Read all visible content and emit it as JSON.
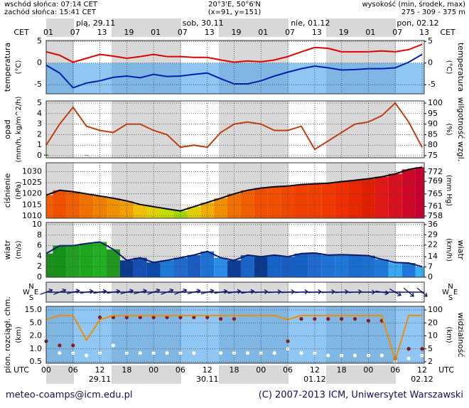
{
  "header": {
    "sunrise": "wschód słońca: 07:14 CET",
    "sunset": "zachód słońca: 15:41 CET",
    "coords": "20°3'E, 50°6'N",
    "grid": "(x=91, y=151)",
    "height_title": "wysokość (min, środek, max)",
    "height": "275 - 309 - 375 m"
  },
  "time_axis": {
    "cet_label": "CET",
    "utc_label": "UTC",
    "cet_hours": [
      "01",
      "07",
      "13",
      "19",
      "01",
      "07",
      "13",
      "19",
      "01",
      "07",
      "13",
      "19",
      "01",
      "07",
      "13"
    ],
    "utc_hours": [
      "00",
      "06",
      "12",
      "18",
      "00",
      "06",
      "12",
      "18",
      "00",
      "06",
      "12",
      "18",
      "00",
      "06",
      "12"
    ],
    "days": [
      "pią, 29.11",
      "sob, 30.11",
      "nie, 01.12",
      "pon, 02.12"
    ],
    "dates": [
      "29.11",
      "30.11",
      "01.12",
      "02.12"
    ]
  },
  "footer": {
    "left": "meteo-coamps@icm.edu.pl",
    "right": "(C) 2007-2013 ICM, Uniwersytet Warszawski"
  },
  "chart_data": [
    {
      "type": "line",
      "ylabel": "temperatura",
      "yunit": "(°C)",
      "y2label": "temperatura",
      "y2unit": "(°C)",
      "ylim": [
        -7.1,
        5.2
      ],
      "yticks": [
        -5,
        0,
        5
      ],
      "y2lim": [
        -7.1,
        5.2
      ],
      "y2ticks": [
        -5,
        0,
        5
      ],
      "grid": true,
      "x": [
        "29.11 00",
        "29.11 03",
        "29.11 06",
        "29.11 09",
        "29.11 12",
        "29.11 15",
        "29.11 18",
        "29.11 21",
        "30.11 00",
        "30.11 03",
        "30.11 06",
        "30.11 09",
        "30.11 12",
        "30.11 15",
        "30.11 18",
        "30.11 21",
        "01.12 00",
        "01.12 03",
        "01.12 06",
        "01.12 09",
        "01.12 12",
        "01.12 15",
        "01.12 18",
        "01.12 21",
        "02.12 00",
        "02.12 03",
        "02.12 06",
        "02.12 09",
        "02.12 12"
      ],
      "series": [
        {
          "type": "line",
          "color": "#e00000",
          "values": [
            2.6,
            1.8,
            0.2,
            1.1,
            2.0,
            1.6,
            1.1,
            1.5,
            2.0,
            1.5,
            1.5,
            1.3,
            1.3,
            0.7,
            0.2,
            0.5,
            0.3,
            0.7,
            1.5,
            2.6,
            3.6,
            3.4,
            2.6,
            2.6,
            2.6,
            2.8,
            2.6,
            3.1,
            4.3
          ]
        },
        {
          "type": "line",
          "color": "#0020b0",
          "values": [
            -0.5,
            -2.3,
            -5.7,
            -4.6,
            -4.1,
            -3.3,
            -3.0,
            -3.4,
            -2.6,
            -3.1,
            -3.0,
            -2.6,
            -2.3,
            -3.6,
            -4.8,
            -4.8,
            -4.1,
            -3.0,
            -2.1,
            -1.3,
            -0.7,
            -1.1,
            -1.6,
            -1.5,
            -1.3,
            -1.3,
            -1.1,
            0.2,
            2.0
          ]
        }
      ]
    },
    {
      "type": "combo",
      "ylabel": "opad",
      "yunit": "(mm/h, kg/m^2/h)",
      "y2label": "wilgotność wzgl.",
      "y2unit": "(%)",
      "ylim": [
        -0.2,
        5.2
      ],
      "yticks": [
        0,
        1,
        2,
        3,
        4,
        5
      ],
      "y2lim": [
        74,
        101
      ],
      "y2ticks": [
        75,
        80,
        85,
        90,
        95,
        100
      ],
      "grid": true,
      "x": [
        "29.11 00",
        "29.11 03",
        "29.11 06",
        "29.11 09",
        "29.11 12",
        "29.11 15",
        "29.11 18",
        "29.11 21",
        "30.11 00",
        "30.11 03",
        "30.11 06",
        "30.11 09",
        "30.11 12",
        "30.11 15",
        "30.11 18",
        "30.11 21",
        "01.12 00",
        "01.12 03",
        "01.12 06",
        "01.12 09",
        "01.12 12",
        "01.12 15",
        "01.12 18",
        "01.12 21",
        "02.12 00",
        "02.12 03",
        "02.12 06",
        "02.12 09",
        "02.12 12"
      ],
      "series": [
        {
          "type": "bar",
          "color": "#10a010",
          "values": [
            0.1,
            0,
            0,
            0.05,
            0,
            0,
            0,
            0,
            0,
            0,
            0,
            0,
            0,
            0,
            0,
            0,
            0,
            0,
            0,
            0,
            0,
            0,
            0,
            0,
            0,
            0,
            0,
            0,
            0
          ]
        },
        {
          "type": "line",
          "axis": "y2",
          "color": "#c04010",
          "values": [
            80,
            90,
            98,
            89,
            87,
            86,
            90,
            90,
            87,
            85,
            79,
            80,
            79,
            86,
            90,
            91,
            90,
            87,
            87,
            89,
            78,
            82,
            86,
            90,
            91,
            94,
            100,
            91,
            79
          ]
        }
      ]
    },
    {
      "type": "area",
      "ylabel": "ciśnienie",
      "yunit": "(hPa)",
      "y2unit": "(mm Hg)",
      "ylim": [
        1009,
        1034
      ],
      "yticks": [
        1010,
        1015,
        1020,
        1025,
        1030
      ],
      "y2lim": [
        757.3,
        774.9
      ],
      "y2ticks": [
        758,
        761,
        765,
        769,
        772
      ],
      "grid": true,
      "x": [
        "29.11 00",
        "29.11 03",
        "29.11 06",
        "29.11 09",
        "29.11 12",
        "29.11 15",
        "29.11 18",
        "29.11 21",
        "30.11 00",
        "30.11 03",
        "30.11 06",
        "30.11 09",
        "30.11 12",
        "30.11 15",
        "30.11 18",
        "30.11 21",
        "01.12 00",
        "01.12 03",
        "01.12 06",
        "01.12 09",
        "01.12 12",
        "01.12 15",
        "01.12 18",
        "01.12 21",
        "02.12 00",
        "02.12 03",
        "02.12 06",
        "02.12 09",
        "02.12 12"
      ],
      "series": [
        {
          "type": "area",
          "color": "#000000",
          "values": [
            1019.4,
            1021.6,
            1021,
            1020,
            1019,
            1018,
            1016.8,
            1015.2,
            1014.2,
            1013.2,
            1012.3,
            1014.2,
            1016.1,
            1018,
            1020,
            1021.6,
            1022.6,
            1023.2,
            1023.5,
            1024.2,
            1024.5,
            1024.8,
            1025.5,
            1026.1,
            1026.8,
            1027.7,
            1029,
            1031,
            1032
          ],
          "point_colors": [
            "#f06000",
            "#f05000",
            "#f06000",
            "#f07000",
            "#f08000",
            "#f09000",
            "#f0a000",
            "#f0c000",
            "#e0d000",
            "#c0e000",
            "#a0d800",
            "#e0d000",
            "#f0b000",
            "#f09000",
            "#f07000",
            "#f06000",
            "#f05000",
            "#f05000",
            "#f04800",
            "#f04000",
            "#f04000",
            "#f03800",
            "#f03000",
            "#e82800",
            "#e02000",
            "#e01818",
            "#d81020",
            "#d00828",
            "#c80030"
          ]
        }
      ]
    },
    {
      "type": "area",
      "ylabel": "wiatr",
      "yunit": "(m/s)",
      "y2label": "wiatr",
      "y2unit": "(km/h)",
      "ylim": [
        0,
        10.4
      ],
      "yticks": [
        0,
        2,
        4,
        6,
        8,
        10
      ],
      "y2lim": [
        0,
        37.4
      ],
      "y2ticks": [
        0,
        7,
        14,
        22,
        29,
        36
      ],
      "grid": true,
      "x": [
        "29.11 00",
        "29.11 03",
        "29.11 06",
        "29.11 09",
        "29.11 12",
        "29.11 15",
        "29.11 18",
        "29.11 21",
        "30.11 00",
        "30.11 03",
        "30.11 06",
        "30.11 09",
        "30.11 12",
        "30.11 15",
        "30.11 18",
        "30.11 21",
        "01.12 00",
        "01.12 03",
        "01.12 06",
        "01.12 09",
        "01.12 12",
        "01.12 15",
        "01.12 18",
        "01.12 21",
        "02.12 00",
        "02.12 03",
        "02.12 06",
        "02.12 09",
        "02.12 12"
      ],
      "series": [
        {
          "type": "area",
          "color": "#0a1a6a",
          "values": [
            4.5,
            6,
            6,
            6.4,
            6.7,
            5.3,
            3.2,
            3.7,
            2.8,
            3.2,
            3.7,
            4.2,
            4.9,
            3.7,
            3.2,
            4.2,
            3.9,
            4.2,
            3.9,
            4.5,
            4.6,
            4.2,
            4.3,
            4.2,
            4.1,
            3.4,
            2.8,
            2.7,
            2.0
          ],
          "point_colors": [
            "#1e8c1e",
            "#169016",
            "#20a020",
            "#1ca81c",
            "#22b022",
            "#209820",
            "#0a3a8c",
            "#1450b4",
            "#0a4aa8",
            "#1e78d8",
            "#1e6ad0",
            "#1a5cc0",
            "#1e72d4",
            "#2a8ce8",
            "#0c3c94",
            "#1a64c8",
            "#0a3a8c",
            "#1464c8",
            "#1a5cc0",
            "#1460c4",
            "#1e6ad0",
            "#1e72d4",
            "#1e78d8",
            "#1a6ccc",
            "#1e70d0",
            "#1e78d8",
            "#38a8f0",
            "#1e78d8",
            "#38b0f0"
          ]
        }
      ]
    },
    {
      "type": "vector",
      "compass": [
        "N",
        "E",
        "S",
        "W"
      ],
      "x": [
        "29.11 00",
        "29.11 03",
        "29.11 06",
        "29.11 09",
        "29.11 12",
        "29.11 15",
        "29.11 18",
        "29.11 21",
        "30.11 00",
        "30.11 03",
        "30.11 06",
        "30.11 09",
        "30.11 12",
        "30.11 15",
        "30.11 18",
        "30.11 21",
        "01.12 00",
        "01.12 03",
        "01.12 06",
        "01.12 09",
        "01.12 12",
        "01.12 15",
        "01.12 18",
        "01.12 21",
        "02.12 00",
        "02.12 03",
        "02.12 06",
        "02.12 09",
        "02.12 12"
      ],
      "series": [
        {
          "type": "vector",
          "color": "#0a1a6a",
          "values": [
            250,
            250,
            255,
            260,
            260,
            260,
            255,
            255,
            250,
            250,
            250,
            255,
            255,
            260,
            260,
            260,
            265,
            265,
            265,
            265,
            265,
            265,
            265,
            265,
            270,
            280,
            300,
            310,
            310
          ]
        }
      ]
    },
    {
      "type": "dots",
      "ylabel": "pion. rozciągł. chm.",
      "yunit": "(km)",
      "y2label": "widzialność",
      "y2unit": "(km)",
      "yticks": [
        {
          "value": 15,
          "label": "15.0"
        },
        {
          "value": 5,
          "label": "5.0"
        },
        {
          "value": 2,
          "label": "2.0"
        },
        {
          "value": 1,
          "label": "1.0"
        },
        0.5
      ],
      "y2ticks": [
        100,
        20,
        10,
        5,
        2
      ],
      "grid": true,
      "x": [
        "29.11 00",
        "29.11 03",
        "29.11 06",
        "29.11 09",
        "29.11 12",
        "29.11 15",
        "29.11 18",
        "29.11 21",
        "30.11 00",
        "30.11 03",
        "30.11 06",
        "30.11 09",
        "30.11 12",
        "30.11 15",
        "30.11 18",
        "30.11 21",
        "01.12 00",
        "01.12 03",
        "01.12 06",
        "01.12 09",
        "01.12 12",
        "01.12 15",
        "01.12 18",
        "01.12 21",
        "02.12 00",
        "02.12 03",
        "02.12 06",
        "02.12 09",
        "02.12 12"
      ],
      "series": [
        {
          "type": "scatter",
          "color": "#8b1a1a",
          "values": [
            1.5,
            1.2,
            1.2,
            null,
            8,
            8,
            8,
            8,
            8,
            8,
            8,
            8,
            8,
            7,
            7,
            null,
            null,
            null,
            1.5,
            7,
            7,
            7,
            7,
            7,
            6,
            6,
            0.6,
            1.0,
            1.0
          ]
        },
        {
          "type": "scatter",
          "color": "#ffffff",
          "values": [
            null,
            0.8,
            0.8,
            0.7,
            0.8,
            1.2,
            0.8,
            0.8,
            0.8,
            0.8,
            0.8,
            0.8,
            null,
            0.8,
            0.8,
            0.8,
            0.8,
            0.8,
            1.0,
            0.8,
            0.8,
            0.7,
            0.7,
            0.7,
            0.7,
            0.7,
            0.5,
            0.6,
            0.7
          ]
        },
        {
          "type": "line",
          "axis": "y2",
          "color": "#f09000",
          "values": [
            30,
            50,
            50,
            8,
            30,
            50,
            50,
            50,
            50,
            50,
            50,
            50,
            50,
            50,
            50,
            50,
            50,
            50,
            30,
            50,
            50,
            50,
            50,
            50,
            50,
            50,
            2.2,
            50,
            50
          ]
        }
      ]
    }
  ]
}
